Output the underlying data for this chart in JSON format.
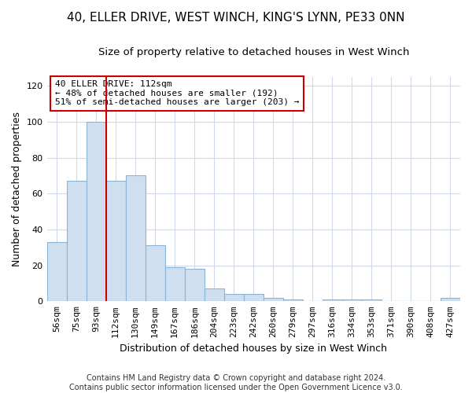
{
  "title": "40, ELLER DRIVE, WEST WINCH, KING'S LYNN, PE33 0NN",
  "subtitle": "Size of property relative to detached houses in West Winch",
  "xlabel": "Distribution of detached houses by size in West Winch",
  "ylabel": "Number of detached properties",
  "categories": [
    "56sqm",
    "75sqm",
    "93sqm",
    "112sqm",
    "130sqm",
    "149sqm",
    "167sqm",
    "186sqm",
    "204sqm",
    "223sqm",
    "242sqm",
    "260sqm",
    "279sqm",
    "297sqm",
    "316sqm",
    "334sqm",
    "353sqm",
    "371sqm",
    "390sqm",
    "408sqm",
    "427sqm"
  ],
  "values": [
    33,
    67,
    100,
    67,
    70,
    31,
    19,
    18,
    7,
    4,
    4,
    2,
    1,
    0,
    1,
    1,
    1,
    0,
    0,
    0,
    2
  ],
  "bar_color": "#cfdff0",
  "bar_edge_color": "#8ab4d4",
  "vline_x_index": 3,
  "vline_color": "#cc0000",
  "annotation_title": "40 ELLER DRIVE: 112sqm",
  "annotation_line1": "← 48% of detached houses are smaller (192)",
  "annotation_line2": "51% of semi-detached houses are larger (203) →",
  "annotation_box_color": "#cc0000",
  "ylim": [
    0,
    125
  ],
  "yticks": [
    0,
    20,
    40,
    60,
    80,
    100,
    120
  ],
  "footer": "Contains HM Land Registry data © Crown copyright and database right 2024.\nContains public sector information licensed under the Open Government Licence v3.0.",
  "bg_color": "#ffffff",
  "grid_color": "#d0daea",
  "title_fontsize": 11,
  "subtitle_fontsize": 9.5,
  "axis_label_fontsize": 9,
  "tick_fontsize": 8,
  "annot_fontsize": 8,
  "footer_fontsize": 7
}
